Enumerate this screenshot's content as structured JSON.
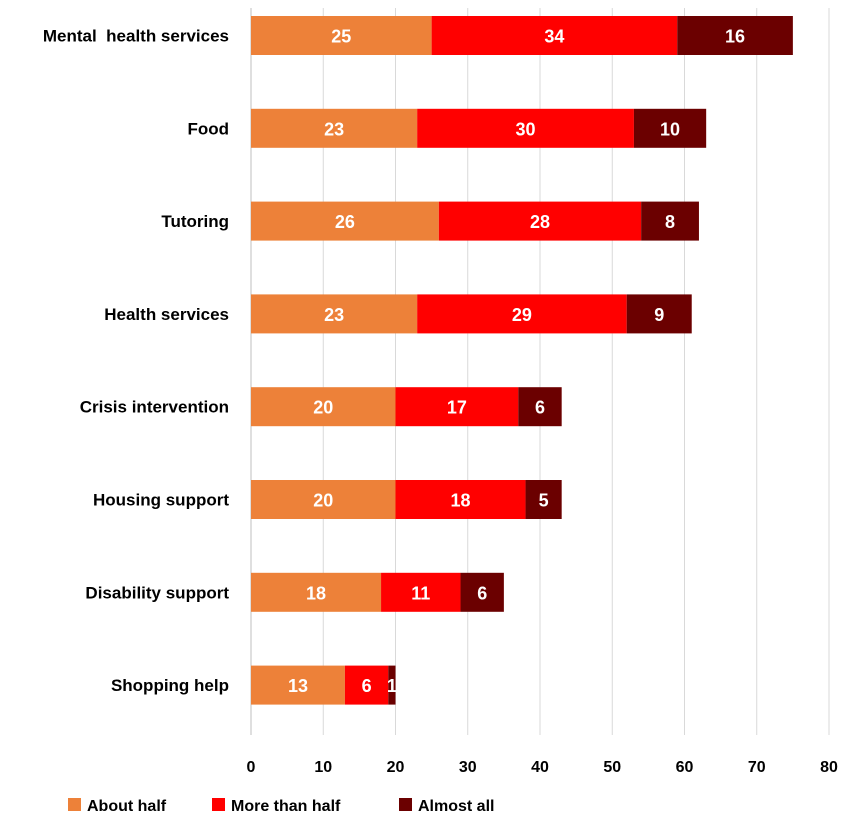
{
  "chart_data": {
    "type": "bar",
    "orientation": "horizontal",
    "stacked": true,
    "title": "",
    "xlabel": "",
    "ylabel": "",
    "xlim": [
      0,
      80
    ],
    "x_ticks": [
      0,
      10,
      20,
      30,
      40,
      50,
      60,
      70,
      80
    ],
    "grid": "vertical",
    "legend_position": "bottom-left",
    "categories": [
      "Mental  health services",
      "Food",
      "Tutoring",
      "Health services",
      "Crisis intervention",
      "Housing support",
      "Disability support",
      "Shopping help"
    ],
    "series": [
      {
        "name": "About half",
        "color": "#ED8139",
        "values": [
          25,
          23,
          26,
          23,
          20,
          20,
          18,
          13
        ]
      },
      {
        "name": "More than half",
        "color": "#FF0000",
        "values": [
          34,
          30,
          28,
          29,
          17,
          18,
          11,
          6
        ]
      },
      {
        "name": "Almost all",
        "color": "#6B0000",
        "values": [
          16,
          10,
          8,
          9,
          6,
          5,
          6,
          1
        ]
      }
    ]
  }
}
